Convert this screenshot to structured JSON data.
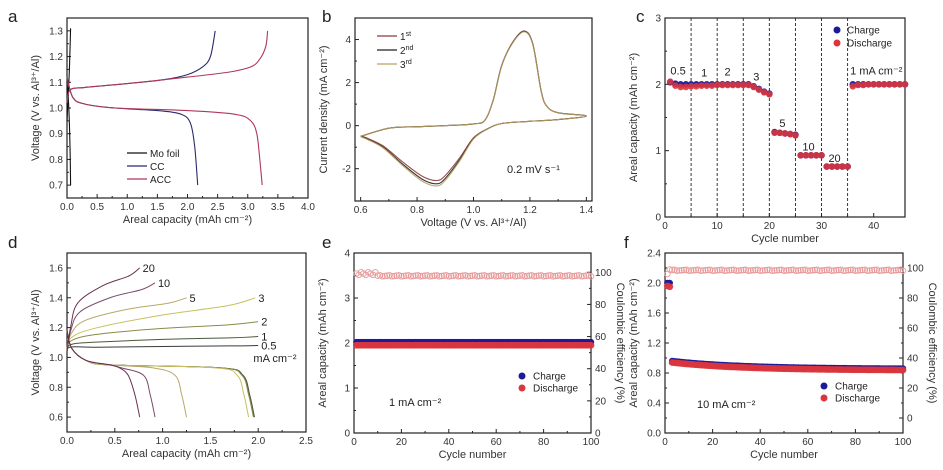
{
  "chart_data": [
    {
      "id": "a",
      "type": "line",
      "panel_label": "a",
      "xlabel": "Areal capacity (mAh cm⁻²)",
      "ylabel": "Voltage (V vs. Al³⁺/Al)",
      "xlim": [
        0,
        4.0
      ],
      "ylim": [
        0.65,
        1.35
      ],
      "xticks": [
        0.0,
        0.5,
        1.0,
        1.5,
        2.0,
        2.5,
        3.0,
        3.5,
        4.0
      ],
      "yticks": [
        0.7,
        0.8,
        0.9,
        1.0,
        1.1,
        1.2,
        1.3
      ],
      "legend": {
        "position": "bottom-center",
        "entries": [
          "Mo foil",
          "CC",
          "ACC"
        ]
      },
      "series": [
        {
          "name": "Mo foil",
          "color": "#111111",
          "charge": [
            [
              0.0,
              0.95
            ],
            [
              0.02,
              1.05
            ],
            [
              0.04,
              1.15
            ],
            [
              0.06,
              1.31
            ]
          ],
          "discharge": [
            [
              0.0,
              1.1
            ],
            [
              0.03,
              1.0
            ],
            [
              0.05,
              0.85
            ],
            [
              0.06,
              0.7
            ]
          ]
        },
        {
          "name": "CC",
          "color": "#2a2a6e",
          "charge": [
            [
              0.0,
              1.02
            ],
            [
              0.05,
              1.07
            ],
            [
              0.3,
              1.08
            ],
            [
              1.0,
              1.095
            ],
            [
              1.6,
              1.11
            ],
            [
              2.0,
              1.13
            ],
            [
              2.25,
              1.16
            ],
            [
              2.38,
              1.2
            ],
            [
              2.46,
              1.3
            ]
          ],
          "discharge": [
            [
              0.0,
              1.12
            ],
            [
              0.1,
              1.04
            ],
            [
              0.3,
              1.015
            ],
            [
              0.8,
              1.0
            ],
            [
              1.5,
              0.99
            ],
            [
              1.9,
              0.975
            ],
            [
              2.05,
              0.94
            ],
            [
              2.12,
              0.85
            ],
            [
              2.17,
              0.7
            ]
          ]
        },
        {
          "name": "ACC",
          "color": "#b0385a",
          "charge": [
            [
              0.0,
              1.02
            ],
            [
              0.05,
              1.07
            ],
            [
              0.3,
              1.08
            ],
            [
              1.0,
              1.095
            ],
            [
              2.0,
              1.12
            ],
            [
              2.7,
              1.14
            ],
            [
              3.05,
              1.16
            ],
            [
              3.2,
              1.19
            ],
            [
              3.3,
              1.24
            ],
            [
              3.33,
              1.3
            ]
          ],
          "discharge": [
            [
              0.0,
              1.12
            ],
            [
              0.1,
              1.04
            ],
            [
              0.3,
              1.015
            ],
            [
              0.8,
              1.0
            ],
            [
              2.0,
              0.99
            ],
            [
              2.8,
              0.975
            ],
            [
              3.05,
              0.95
            ],
            [
              3.15,
              0.9
            ],
            [
              3.2,
              0.8
            ],
            [
              3.24,
              0.7
            ]
          ]
        }
      ]
    },
    {
      "id": "b",
      "type": "line",
      "panel_label": "b",
      "xlabel": "Voltage (V vs. Al³⁺/Al)",
      "ylabel": "Current density (mA cm⁻²)",
      "xlim": [
        0.58,
        1.42
      ],
      "ylim": [
        -3.5,
        5.0
      ],
      "xticks": [
        0.6,
        0.8,
        1.0,
        1.2,
        1.4
      ],
      "yticks": [
        -2,
        0,
        2,
        4
      ],
      "legend": {
        "position": "top-left",
        "entries": [
          "1st",
          "2nd",
          "3rd"
        ]
      },
      "annotation": "0.2 mV s⁻¹",
      "series": [
        {
          "name": "1st",
          "color": "#8b3a3a",
          "peak_anodic": [
            1.18,
            4.4
          ],
          "peak_cathodic": [
            0.87,
            -2.55
          ]
        },
        {
          "name": "2nd",
          "color": "#222222",
          "peak_anodic": [
            1.18,
            4.38
          ],
          "peak_cathodic": [
            0.87,
            -2.7
          ]
        },
        {
          "name": "3rd",
          "color": "#b8a060",
          "peak_anodic": [
            1.18,
            4.36
          ],
          "peak_cathodic": [
            0.87,
            -2.8
          ]
        }
      ],
      "upper_branch": [
        [
          0.6,
          -0.5
        ],
        [
          0.7,
          -0.12
        ],
        [
          0.8,
          -0.05
        ],
        [
          0.9,
          0.0
        ],
        [
          1.0,
          0.08
        ],
        [
          1.04,
          0.25
        ],
        [
          1.07,
          1.2
        ],
        [
          1.1,
          2.8
        ],
        [
          1.14,
          3.9
        ],
        [
          1.18,
          4.4
        ],
        [
          1.21,
          3.8
        ],
        [
          1.24,
          1.6
        ],
        [
          1.26,
          0.9
        ],
        [
          1.3,
          0.6
        ],
        [
          1.4,
          0.45
        ]
      ],
      "lower_branch": [
        [
          1.4,
          0.4
        ],
        [
          1.3,
          0.28
        ],
        [
          1.2,
          0.2
        ],
        [
          1.1,
          0.1
        ],
        [
          1.05,
          -0.15
        ],
        [
          1.0,
          -0.6
        ],
        [
          0.95,
          -1.6
        ],
        [
          0.9,
          -2.45
        ],
        [
          0.87,
          -2.7
        ],
        [
          0.82,
          -2.5
        ],
        [
          0.75,
          -1.8
        ],
        [
          0.68,
          -1.0
        ],
        [
          0.62,
          -0.6
        ],
        [
          0.6,
          -0.5
        ]
      ]
    },
    {
      "id": "c",
      "type": "scatter",
      "panel_label": "c",
      "xlabel": "Cycle number",
      "ylabel": "Areal capacity (mAh cm⁻²)",
      "xlim": [
        0,
        46
      ],
      "ylim": [
        0,
        3
      ],
      "xticks": [
        0,
        10,
        20,
        30,
        40
      ],
      "yticks": [
        0,
        1,
        2,
        3
      ],
      "legend": {
        "position": "top-right",
        "entries": [
          "Charge",
          "Discharge"
        ]
      },
      "dividers": [
        5,
        10,
        15,
        20,
        25,
        30,
        35
      ],
      "rate_labels": [
        {
          "text": "0.5",
          "x": 2.5,
          "y": 2.15
        },
        {
          "text": "1",
          "x": 7.5,
          "y": 2.12
        },
        {
          "text": "2",
          "x": 12,
          "y": 2.13
        },
        {
          "text": "3",
          "x": 17.5,
          "y": 2.06
        },
        {
          "text": "5",
          "x": 22.5,
          "y": 1.36
        },
        {
          "text": "10",
          "x": 27.5,
          "y": 1.0
        },
        {
          "text": "20",
          "x": 32.5,
          "y": 0.83
        },
        {
          "text": "1 mA cm⁻²",
          "x": 40.5,
          "y": 2.15
        }
      ],
      "series": [
        {
          "name": "Charge",
          "color": "#1a1a9a",
          "x": [
            1,
            2,
            3,
            4,
            5,
            6,
            7,
            8,
            9,
            10,
            11,
            12,
            13,
            14,
            15,
            16,
            17,
            18,
            19,
            20,
            21,
            22,
            23,
            24,
            25,
            26,
            27,
            28,
            29,
            30,
            31,
            32,
            33,
            34,
            35,
            36,
            37,
            38,
            39,
            40,
            41,
            42,
            43,
            44,
            45,
            46
          ],
          "y": [
            2.03,
            2.01,
            2.0,
            2.0,
            2.0,
            2.0,
            2.0,
            2.0,
            2.0,
            2.0,
            2.0,
            2.0,
            2.0,
            2.0,
            2.0,
            2.0,
            1.97,
            1.93,
            1.89,
            1.86,
            1.28,
            1.27,
            1.26,
            1.25,
            1.24,
            0.93,
            0.93,
            0.93,
            0.93,
            0.93,
            0.76,
            0.76,
            0.76,
            0.76,
            0.76,
            2.0,
            2.0,
            2.0,
            2.0,
            2.0,
            2.0,
            2.0,
            2.0,
            2.0,
            2.0,
            2.0
          ]
        },
        {
          "name": "Discharge",
          "color": "#d9363e",
          "x": [
            1,
            2,
            3,
            4,
            5,
            6,
            7,
            8,
            9,
            10,
            11,
            12,
            13,
            14,
            15,
            16,
            17,
            18,
            19,
            20,
            21,
            22,
            23,
            24,
            25,
            26,
            27,
            28,
            29,
            30,
            31,
            32,
            33,
            34,
            35,
            36,
            37,
            38,
            39,
            40,
            41,
            42,
            43,
            44,
            45,
            46
          ],
          "y": [
            2.04,
            1.98,
            1.96,
            1.96,
            1.97,
            1.97,
            1.98,
            1.98,
            1.98,
            1.99,
            1.99,
            1.99,
            1.99,
            1.99,
            1.99,
            1.99,
            1.96,
            1.92,
            1.88,
            1.85,
            1.27,
            1.27,
            1.26,
            1.25,
            1.23,
            0.93,
            0.93,
            0.93,
            0.93,
            0.93,
            0.76,
            0.76,
            0.76,
            0.76,
            0.76,
            1.97,
            1.99,
            1.99,
            2.0,
            2.0,
            2.0,
            2.0,
            2.0,
            2.0,
            2.0,
            2.0
          ]
        }
      ]
    },
    {
      "id": "d",
      "type": "line",
      "panel_label": "d",
      "xlabel": "Areal capacity (mAh cm⁻²)",
      "ylabel": "Voltage (V vs. Al³⁺/Al)",
      "xlim": [
        0,
        2.5
      ],
      "ylim": [
        0.5,
        1.7
      ],
      "xticks": [
        0.0,
        0.5,
        1.0,
        1.5,
        2.0,
        2.5
      ],
      "yticks": [
        0.6,
        0.8,
        1.0,
        1.2,
        1.4,
        1.6
      ],
      "unit_label": "mA cm⁻²",
      "series": [
        {
          "name": "0.5",
          "color": "#3a3a3a",
          "charge_end": [
            2.0,
            1.08
          ],
          "charge_mid": 1.07,
          "discharge_end": 1.96
        },
        {
          "name": "1",
          "color": "#4a5a3a",
          "charge_end": [
            2.0,
            1.14
          ],
          "charge_mid": 1.11,
          "discharge_end": 1.96
        },
        {
          "name": "2",
          "color": "#8a8a4a",
          "charge_end": [
            2.0,
            1.24
          ],
          "charge_mid": 1.17,
          "discharge_end": 1.95
        },
        {
          "name": "3",
          "color": "#c8c060",
          "charge_end": [
            1.97,
            1.4
          ],
          "charge_mid": 1.22,
          "discharge_end": 1.9
        },
        {
          "name": "5",
          "color": "#b8a868",
          "charge_end": [
            1.25,
            1.4
          ],
          "charge_mid": 1.28,
          "discharge_end": 1.25
        },
        {
          "name": "10",
          "color": "#7a4a6a",
          "charge_end": [
            0.92,
            1.5
          ],
          "charge_mid": 1.35,
          "discharge_end": 0.92
        },
        {
          "name": "20",
          "color": "#6a3050",
          "charge_end": [
            0.76,
            1.6
          ],
          "charge_mid": 1.42,
          "discharge_end": 0.76
        }
      ]
    },
    {
      "id": "e",
      "type": "scatter",
      "panel_label": "e",
      "xlabel": "Cycle number",
      "ylabel": "Areal capacity (mAh cm⁻²)",
      "y2label": "Coulombic efficiency (%)",
      "xlim": [
        0,
        100
      ],
      "ylim": [
        0,
        4
      ],
      "y2lim": [
        0,
        112
      ],
      "xticks": [
        0,
        20,
        40,
        60,
        80,
        100
      ],
      "yticks": [
        0,
        1,
        2,
        3,
        4
      ],
      "y2ticks": [
        0,
        20,
        40,
        60,
        80,
        100
      ],
      "legend": {
        "position": "bottom-right",
        "entries": [
          "Charge",
          "Discharge"
        ]
      },
      "annotation": "1 mA cm⁻²",
      "series": [
        {
          "name": "Charge",
          "color": "#1a1a9a",
          "value": 2.02,
          "start": 2.0
        },
        {
          "name": "Discharge",
          "color": "#d9363e",
          "value": 1.95,
          "start": 1.97
        },
        {
          "name": "Coulombic efficiency",
          "color": "#e89a9a",
          "value": 97.5,
          "start": 100
        }
      ]
    },
    {
      "id": "f",
      "type": "scatter",
      "panel_label": "f",
      "xlabel": "Cycle number",
      "ylabel": "Areal capacity (mAh cm⁻²)",
      "y2label": "Coulombic efficiency (%)",
      "xlim": [
        0,
        100
      ],
      "ylim": [
        0,
        2.4
      ],
      "y2lim": [
        -10,
        110
      ],
      "xticks": [
        0,
        20,
        40,
        60,
        80,
        100
      ],
      "yticks": [
        0.0,
        0.4,
        0.8,
        1.2,
        1.6,
        2.0,
        2.4
      ],
      "y2ticks": [
        0,
        20,
        40,
        60,
        80,
        100
      ],
      "legend": {
        "position": "bottom-right",
        "entries": [
          "Charge",
          "Discharge"
        ]
      },
      "annotation": "10 mA cm⁻²",
      "series": [
        {
          "name": "Charge",
          "color": "#1a1a9a",
          "first_cycles": [
            2.0,
            2.0
          ],
          "start": 0.96,
          "end": 0.86
        },
        {
          "name": "Discharge",
          "color": "#d9363e",
          "first_cycles": [
            1.96,
            1.95
          ],
          "start": 0.94,
          "end": 0.84
        },
        {
          "name": "Coulombic efficiency",
          "color": "#e89a9a",
          "first_cycles": [
            96,
            99
          ],
          "value": 98.5
        }
      ]
    }
  ]
}
